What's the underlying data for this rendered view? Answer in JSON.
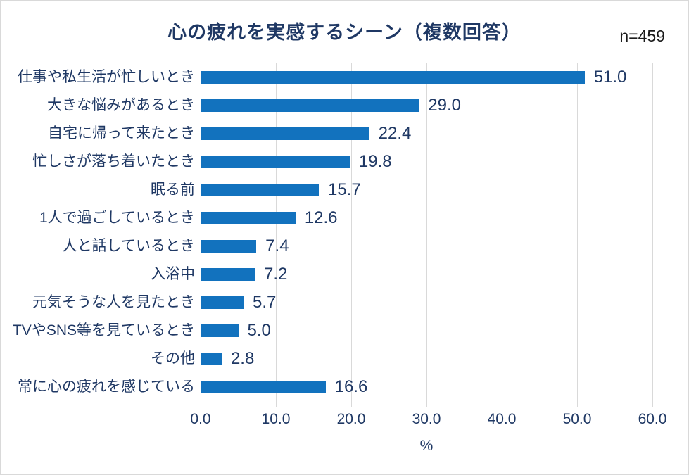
{
  "title": "心の疲れを実感するシーン（複数回答）",
  "sample_size_label": "n=459",
  "chart_data": {
    "type": "bar",
    "orientation": "horizontal",
    "title": "心の疲れを実感するシーン（複数回答）",
    "sample_size": "n=459",
    "categories": [
      "仕事や私生活が忙しいとき",
      "大きな悩みがあるとき",
      "自宅に帰って来たとき",
      "忙しさが落ち着いたとき",
      "眠る前",
      "1人で過ごしているとき",
      "人と話しているとき",
      "入浴中",
      "元気そうな人を見たとき",
      "TVやSNS等を見ているとき",
      "その他",
      "常に心の疲れを感じている"
    ],
    "values": [
      51.0,
      29.0,
      22.4,
      19.8,
      15.7,
      12.6,
      7.4,
      7.2,
      5.7,
      5.0,
      2.8,
      16.6
    ],
    "value_labels": [
      "51.0",
      "29.0",
      "22.4",
      "19.8",
      "15.7",
      "12.6",
      "7.4",
      "7.2",
      "5.7",
      "5.0",
      "2.8",
      "16.6"
    ],
    "x_ticks": [
      "0.0",
      "10.0",
      "20.0",
      "30.0",
      "40.0",
      "50.0",
      "60.0"
    ],
    "xlim": [
      0,
      60
    ],
    "xlabel": "%",
    "grid": true,
    "legend": "none",
    "bar_color": "#1272be",
    "text_color": "#1f3864",
    "gridline_color": "#d9d9d9"
  }
}
